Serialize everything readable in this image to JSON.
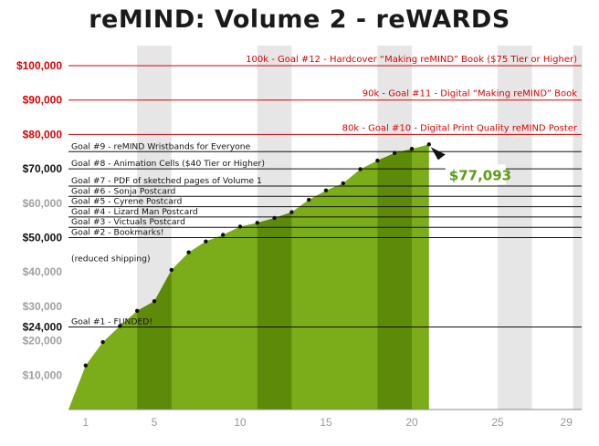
{
  "chart_data": {
    "type": "area",
    "title": "reMIND: Volume 2 - reWARDS",
    "x": [
      0,
      1,
      2,
      3,
      4,
      5,
      6,
      7,
      8,
      9,
      10,
      11,
      12,
      13,
      14,
      15,
      16,
      17,
      18,
      19,
      20,
      21
    ],
    "values": [
      0,
      12800,
      19600,
      24300,
      28700,
      31500,
      40600,
      45700,
      48900,
      50800,
      53200,
      54300,
      55700,
      57400,
      61000,
      63700,
      65800,
      69900,
      72400,
      74600,
      75800,
      77093
    ],
    "xlim": [
      0,
      30
    ],
    "ylim": [
      0,
      104000
    ],
    "xticks": [
      1,
      5,
      10,
      15,
      20,
      25,
      29
    ],
    "yticks": [
      {
        "value": 10000,
        "label": "$10,000",
        "style": "grey"
      },
      {
        "value": 20000,
        "label": "$20,000",
        "style": "grey"
      },
      {
        "value": 24000,
        "label": "$24,000",
        "style": "black"
      },
      {
        "value": 30000,
        "label": "$30,000",
        "style": "grey"
      },
      {
        "value": 40000,
        "label": "$40,000",
        "style": "grey"
      },
      {
        "value": 50000,
        "label": "$50,000",
        "style": "black"
      },
      {
        "value": 60000,
        "label": "$60,000",
        "style": "grey"
      },
      {
        "value": 70000,
        "label": "$70,000",
        "style": "black"
      },
      {
        "value": 80000,
        "label": "$80,000",
        "style": "red"
      },
      {
        "value": 90000,
        "label": "$90,000",
        "style": "red"
      },
      {
        "value": 100000,
        "label": "$100,000",
        "style": "red"
      }
    ],
    "goals": [
      {
        "value": 24000,
        "label": "Goal #1 - FUNDED!",
        "color": "black"
      },
      {
        "value": 50000,
        "label": "Goal #2 - Bookmarks!",
        "sub": "(reduced shipping)",
        "color": "black"
      },
      {
        "value": 53000,
        "label": "Goal #3 - Victuals Postcard",
        "color": "black"
      },
      {
        "value": 56000,
        "label": "Goal #4 - Lizard Man Postcard",
        "color": "black"
      },
      {
        "value": 59000,
        "label": "Goal #5 - Cyrene Postcard",
        "color": "black"
      },
      {
        "value": 62000,
        "label": "Goal #6 - Sonja Postcard",
        "color": "black"
      },
      {
        "value": 65000,
        "label": "Goal #7 - PDF of sketched pages of Volume 1",
        "color": "black"
      },
      {
        "value": 70000,
        "label": "Goal #8 - Animation Cells ($40 Tier or Higher)",
        "color": "black"
      },
      {
        "value": 75000,
        "label": "Goal #9 - reMIND Wristbands for Everyone",
        "color": "black"
      },
      {
        "value": 80000,
        "label": "80k - Goal #10 - Digital Print Quality reMIND Poster",
        "color": "red"
      },
      {
        "value": 90000,
        "label": "90k - Goal #11 - Digital “Making reMIND” Book",
        "color": "red"
      },
      {
        "value": 100000,
        "label": "100k - Goal #12 - Hardcover “Making reMIND” Book ($75 Tier or Higher)",
        "color": "red"
      }
    ],
    "current": {
      "x": 21,
      "value": 77093,
      "label": "$77,093"
    },
    "colors": {
      "fill": "#7bac1a",
      "fill_dark": "#5e8a0a",
      "red": "#dd0000",
      "callout": "#5a9e12"
    }
  }
}
